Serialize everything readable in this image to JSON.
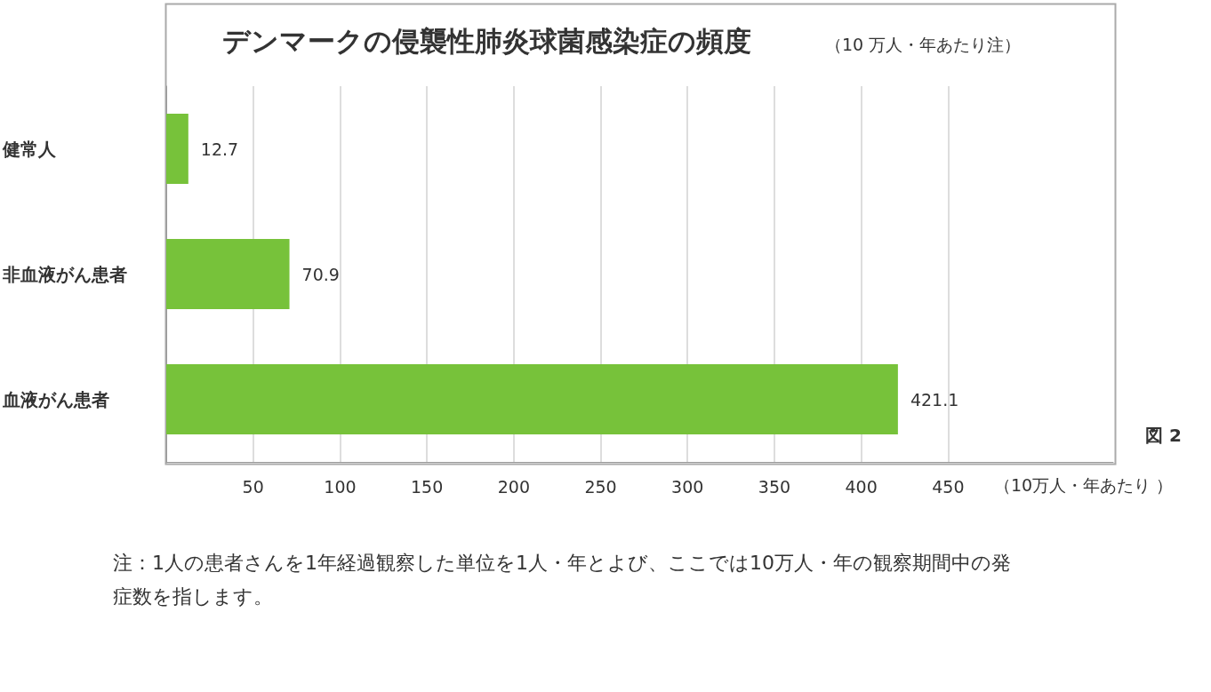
{
  "chart_data": {
    "type": "bar",
    "orientation": "horizontal",
    "title": "デンマークの侵襲性肺炎球菌感染症の頻度",
    "subtitle": "（10 万人・年あたり注）",
    "xlabel": "（10万人・年あたり ）",
    "categories": [
      "健常人",
      "非血液がん患者",
      "血液がん患者"
    ],
    "values": [
      12.7,
      70.9,
      421.1
    ],
    "color": "#77c23a",
    "data_labels": true,
    "xlim": [
      0,
      545
    ],
    "xticks": [
      50,
      100,
      150,
      200,
      250,
      300,
      350,
      400,
      450
    ],
    "grid": "x",
    "annotations": [
      "図 2",
      "注：1人の患者さんを1年経過観察した単位を1人・年とよび、ここでは10万人・年の観察期間中の発症数を指します。"
    ]
  }
}
